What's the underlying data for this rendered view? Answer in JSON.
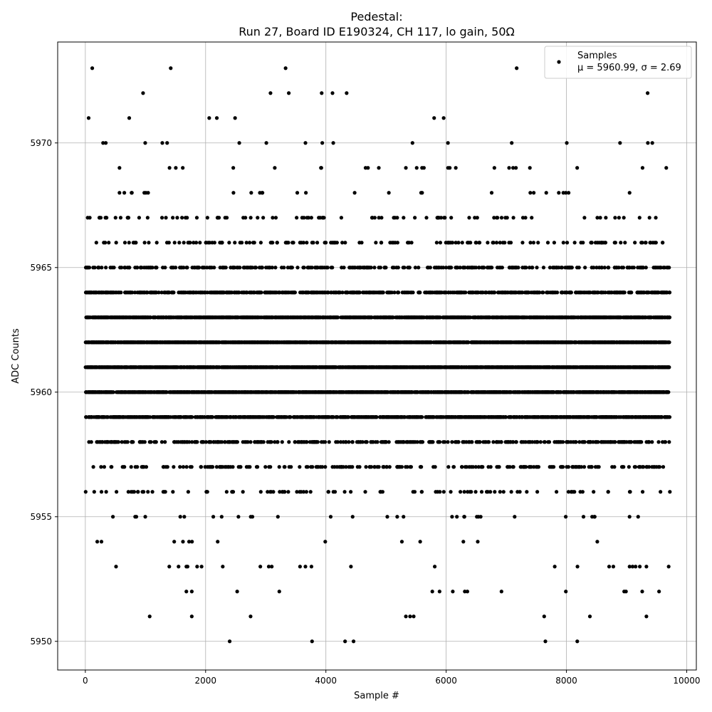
{
  "chart_data": {
    "type": "scatter",
    "title_line1": "Pedestal:",
    "title_line2": "Run 27, Board ID E190324, CH 117, lo gain, 50Ω",
    "xlabel": "Sample #",
    "ylabel": "ADC Counts",
    "xlim": [
      -460,
      10160
    ],
    "ylim": [
      5948.85,
      5974.05
    ],
    "xticks": [
      0,
      2000,
      4000,
      6000,
      8000,
      10000
    ],
    "yticks": [
      5950,
      5955,
      5960,
      5965,
      5970
    ],
    "grid": true,
    "legend_position": "top-right",
    "series": [
      {
        "name": "Samples",
        "stats_label": "μ = 5960.99, σ = 2.69",
        "color": "#000000",
        "x_range": [
          0,
          9720
        ],
        "level_density": {
          "5950": 0.0004,
          "5951": 0.0008,
          "5952": 0.0015,
          "5953": 0.002,
          "5954": 0.006,
          "5955": 0.02,
          "5956": 0.05,
          "5957": 0.1,
          "5958": 0.18,
          "5959": 0.45,
          "5960": 0.55,
          "5961": 0.62,
          "5962": 0.6,
          "5963": 0.5,
          "5964": 0.3,
          "5965": 0.16,
          "5966": 0.07,
          "5967": 0.04,
          "5968": 0.015,
          "5969": 0.005,
          "5970": 0.002,
          "5971": 0.001,
          "5972": 0.0008,
          "5973": 0.0006
        },
        "outliers": [
          [
            115,
            5973
          ],
          [
            1420,
            5973
          ],
          [
            3330,
            5973
          ],
          [
            960,
            5972
          ],
          [
            3930,
            5972
          ],
          [
            4110,
            5972
          ],
          [
            9350,
            5972
          ],
          [
            730,
            5971
          ],
          [
            2060,
            5971
          ],
          [
            2490,
            5971
          ],
          [
            5800,
            5971
          ],
          [
            340,
            5970
          ],
          [
            1280,
            5970
          ],
          [
            1360,
            5970
          ],
          [
            2560,
            5970
          ],
          [
            3010,
            5970
          ],
          [
            3940,
            5970
          ],
          [
            5440,
            5970
          ],
          [
            6030,
            5970
          ],
          [
            7090,
            5970
          ],
          [
            1400,
            5969
          ],
          [
            1620,
            5969
          ],
          [
            2460,
            5969
          ],
          [
            3150,
            5969
          ],
          [
            4660,
            5969
          ],
          [
            4700,
            5969
          ],
          [
            4880,
            5969
          ],
          [
            5330,
            5969
          ],
          [
            5510,
            5969
          ],
          [
            5630,
            5969
          ],
          [
            6060,
            5969
          ],
          [
            6160,
            5969
          ],
          [
            7160,
            5969
          ],
          [
            9660,
            5969
          ],
          [
            1070,
            5951
          ],
          [
            1770,
            5951
          ],
          [
            5330,
            5951
          ],
          [
            5400,
            5951
          ],
          [
            5460,
            5951
          ],
          [
            7630,
            5951
          ],
          [
            8390,
            5951
          ],
          [
            9330,
            5951
          ],
          [
            2400,
            5950
          ],
          [
            3770,
            5950
          ],
          [
            4460,
            5950
          ],
          [
            7650,
            5950
          ],
          [
            8180,
            5950
          ],
          [
            1680,
            5952
          ],
          [
            5770,
            5952
          ],
          [
            6110,
            5952
          ],
          [
            6310,
            5952
          ],
          [
            6920,
            5952
          ],
          [
            7990,
            5952
          ],
          [
            8960,
            5952
          ],
          [
            8990,
            5952
          ],
          [
            9260,
            5952
          ],
          [
            9540,
            5952
          ],
          [
            1550,
            5953
          ],
          [
            1680,
            5953
          ],
          [
            1700,
            5953
          ],
          [
            2910,
            5953
          ],
          [
            3050,
            5953
          ],
          [
            3100,
            5953
          ],
          [
            3570,
            5953
          ],
          [
            3660,
            5953
          ],
          [
            3760,
            5953
          ],
          [
            5810,
            5953
          ],
          [
            8710,
            5953
          ],
          [
            8780,
            5953
          ],
          [
            9050,
            5953
          ],
          [
            9100,
            5953
          ],
          [
            9150,
            5953
          ],
          [
            9220,
            5953
          ],
          [
            9330,
            5953
          ],
          [
            9700,
            5953
          ]
        ]
      }
    ]
  }
}
